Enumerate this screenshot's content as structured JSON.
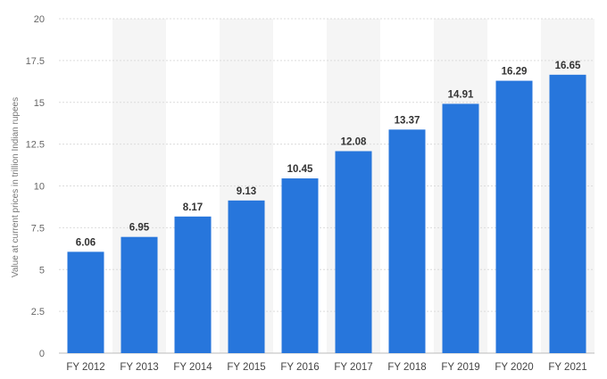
{
  "chart_data": {
    "type": "bar",
    "title": "",
    "xlabel": "",
    "ylabel": "Value at current prices in trillion Indian rupees",
    "categories": [
      "FY 2012",
      "FY 2013",
      "FY 2014",
      "FY 2015",
      "FY 2016",
      "FY 2017",
      "FY 2018",
      "FY 2019",
      "FY 2020",
      "FY 2021"
    ],
    "values": [
      6.06,
      6.95,
      8.17,
      9.13,
      10.45,
      12.08,
      13.37,
      14.91,
      16.29,
      16.65
    ],
    "value_labels": [
      "6.06",
      "6.95",
      "8.17",
      "9.13",
      "10.45",
      "12.08",
      "13.37",
      "14.91",
      "16.29",
      "16.65"
    ],
    "ylim": [
      0,
      20
    ],
    "y_ticks": [
      0,
      2.5,
      5,
      7.5,
      10,
      12.5,
      15,
      17.5,
      20
    ],
    "y_tick_labels": [
      "0",
      "2.5",
      "5",
      "7.5",
      "10",
      "12.5",
      "15",
      "17.5",
      "20"
    ],
    "grid": true,
    "alternating_column_bands": true,
    "colors": {
      "bar": "#2776dc",
      "band": "#f5f5f5",
      "grid": "#dcdcdc",
      "axis": "#bbbbbb"
    }
  }
}
